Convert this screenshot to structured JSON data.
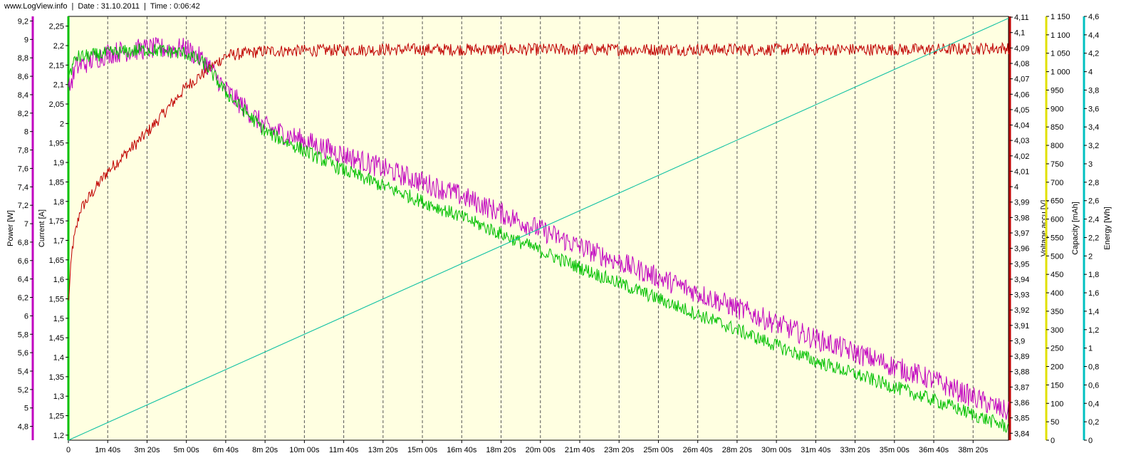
{
  "header": {
    "site": "www.LogView.info",
    "sep": "|",
    "date": "Date : 31.10.2011",
    "time": "Time : 0:06:42"
  },
  "chart_data": {
    "type": "line",
    "background": "#ffffe1",
    "grid": "vertical dashed",
    "x": {
      "label": "",
      "range_s": [
        0,
        2390
      ],
      "ticks": [
        "0",
        "1m 40s",
        "3m 20s",
        "5m 00s",
        "6m 40s",
        "8m 20s",
        "10m 00s",
        "11m 40s",
        "13m 20s",
        "15m 00s",
        "16m 40s",
        "18m 20s",
        "20m 00s",
        "21m 40s",
        "23m 20s",
        "25m 00s",
        "26m 40s",
        "28m 20s",
        "30m 00s",
        "31m 40s",
        "33m 20s",
        "35m 00s",
        "36m 40s",
        "38m 20s"
      ],
      "tick_values_s": [
        0,
        100,
        200,
        300,
        400,
        500,
        600,
        700,
        800,
        900,
        1000,
        1100,
        1200,
        1300,
        1400,
        1500,
        1600,
        1700,
        1800,
        1900,
        2000,
        2100,
        2200,
        2300
      ]
    },
    "axes": {
      "power": {
        "label": "Power [W]",
        "color": "#c000c0",
        "side": "left",
        "range": [
          4.65,
          9.25
        ],
        "ticks": [
          "4,8",
          "5",
          "5,2",
          "5,4",
          "5,6",
          "5,8",
          "6",
          "6,2",
          "6,4",
          "6,6",
          "6,8",
          "7",
          "7,2",
          "7,4",
          "7,6",
          "7,8",
          "8",
          "8,2",
          "8,4",
          "8,6",
          "8,8",
          "9",
          "9,2"
        ],
        "tick_values": [
          4.8,
          5.0,
          5.2,
          5.4,
          5.6,
          5.8,
          6.0,
          6.2,
          6.4,
          6.6,
          6.8,
          7.0,
          7.2,
          7.4,
          7.6,
          7.8,
          8.0,
          8.2,
          8.4,
          8.6,
          8.8,
          9.0,
          9.2
        ]
      },
      "current": {
        "label": "Current [A]",
        "color": "#00c000",
        "side": "left",
        "range": [
          1.187,
          2.275
        ],
        "ticks": [
          "1,2",
          "1,25",
          "1,3",
          "1,35",
          "1,4",
          "1,45",
          "1,5",
          "1,55",
          "1,6",
          "1,65",
          "1,7",
          "1,75",
          "1,8",
          "1,85",
          "1,9",
          "1,95",
          "2",
          "2,05",
          "2,1",
          "2,15",
          "2,2",
          "2,25"
        ],
        "tick_values": [
          1.2,
          1.25,
          1.3,
          1.35,
          1.4,
          1.45,
          1.5,
          1.55,
          1.6,
          1.65,
          1.7,
          1.75,
          1.8,
          1.85,
          1.9,
          1.95,
          2.0,
          2.05,
          2.1,
          2.15,
          2.2,
          2.25
        ]
      },
      "voltage": {
        "label": "Voltage accu [V]",
        "color": "#c00000",
        "side": "right",
        "range": [
          3.8355,
          4.1105
        ],
        "ticks": [
          "3,84",
          "3,85",
          "3,86",
          "3,87",
          "3,88",
          "3,89",
          "3,9",
          "3,91",
          "3,92",
          "3,93",
          "3,94",
          "3,95",
          "3,96",
          "3,97",
          "3,98",
          "3,99",
          "4",
          "4,01",
          "4,02",
          "4,03",
          "4,04",
          "4,05",
          "4,06",
          "4,07",
          "4,08",
          "4,09",
          "4,1",
          "4,11"
        ],
        "tick_values": [
          3.84,
          3.85,
          3.86,
          3.87,
          3.88,
          3.89,
          3.9,
          3.91,
          3.92,
          3.93,
          3.94,
          3.95,
          3.96,
          3.97,
          3.98,
          3.99,
          4.0,
          4.01,
          4.02,
          4.03,
          4.04,
          4.05,
          4.06,
          4.07,
          4.08,
          4.09,
          4.1,
          4.11
        ]
      },
      "capacity": {
        "label": "Capacity [mAh]",
        "color": "#e0e000",
        "side": "right",
        "range": [
          0,
          1150
        ],
        "ticks": [
          "0",
          "50",
          "100",
          "150",
          "200",
          "250",
          "300",
          "350",
          "400",
          "450",
          "500",
          "550",
          "600",
          "650",
          "700",
          "750",
          "800",
          "850",
          "900",
          "950",
          "1 000",
          "1 050",
          "1 100",
          "1 150"
        ],
        "tick_values": [
          0,
          50,
          100,
          150,
          200,
          250,
          300,
          350,
          400,
          450,
          500,
          550,
          600,
          650,
          700,
          750,
          800,
          850,
          900,
          950,
          1000,
          1050,
          1100,
          1150
        ]
      },
      "energy": {
        "label": "Energy [Wh]",
        "color": "#00c0c0",
        "side": "right",
        "range": [
          0,
          4.6
        ],
        "ticks": [
          "0",
          "0,2",
          "0,4",
          "0,6",
          "0,8",
          "1",
          "1,2",
          "1,4",
          "1,6",
          "1,8",
          "2",
          "2,2",
          "2,4",
          "2,6",
          "2,8",
          "3",
          "3,2",
          "3,4",
          "3,6",
          "3,8",
          "4",
          "4,2",
          "4,4",
          "4,6"
        ],
        "tick_values": [
          0,
          0.2,
          0.4,
          0.6,
          0.8,
          1.0,
          1.2,
          1.4,
          1.6,
          1.8,
          2.0,
          2.2,
          2.4,
          2.6,
          2.8,
          3.0,
          3.2,
          3.4,
          3.6,
          3.8,
          4.0,
          4.2,
          4.4,
          4.6
        ]
      }
    },
    "series": [
      {
        "axis": "voltage",
        "color": "#c00000",
        "noise": 0.004,
        "x": [
          0,
          10,
          30,
          100,
          200,
          300,
          350,
          400,
          500,
          800,
          1500,
          2200,
          2390
        ],
        "y": [
          3.925,
          3.96,
          3.985,
          4.01,
          4.035,
          4.065,
          4.075,
          4.085,
          4.088,
          4.089,
          4.089,
          4.089,
          4.09
        ]
      },
      {
        "axis": "power",
        "color": "#c000c0",
        "noise": 0.12,
        "x": [
          0,
          20,
          100,
          200,
          300,
          350,
          400,
          500,
          700,
          1000,
          1300,
          1600,
          1900,
          2200,
          2390
        ],
        "y": [
          8.45,
          8.7,
          8.85,
          8.9,
          8.9,
          8.75,
          8.45,
          8.05,
          7.75,
          7.3,
          6.75,
          6.25,
          5.75,
          5.3,
          4.95
        ]
      },
      {
        "axis": "current",
        "color": "#00c000",
        "noise": 0.018,
        "x": [
          0,
          20,
          100,
          200,
          300,
          350,
          400,
          500,
          700,
          1000,
          1300,
          1600,
          1900,
          2200,
          2390
        ],
        "y": [
          2.12,
          2.17,
          2.18,
          2.19,
          2.18,
          2.15,
          2.08,
          1.98,
          1.88,
          1.76,
          1.63,
          1.51,
          1.39,
          1.29,
          1.22
        ]
      },
      {
        "axis": "capacity",
        "color": "#e0e000",
        "x": [
          0,
          2390
        ],
        "y": [
          0,
          1145
        ]
      },
      {
        "axis": "energy",
        "color": "#00c0c0",
        "x": [
          0,
          2390
        ],
        "y": [
          0,
          4.58
        ]
      }
    ]
  }
}
